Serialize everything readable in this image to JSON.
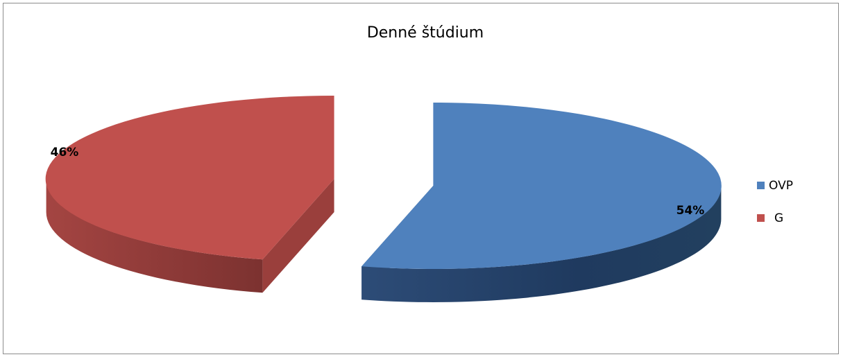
{
  "chart_data": {
    "type": "pie",
    "title": "Denné štúdium",
    "style": "3D exploded pie",
    "legend_position": "right",
    "series": [
      {
        "name": "OVP",
        "value": 54,
        "label": "54%",
        "color": "#4f81bd"
      },
      {
        "name": "G",
        "value": 46,
        "label": "46%",
        "color": "#c0504d"
      }
    ]
  }
}
